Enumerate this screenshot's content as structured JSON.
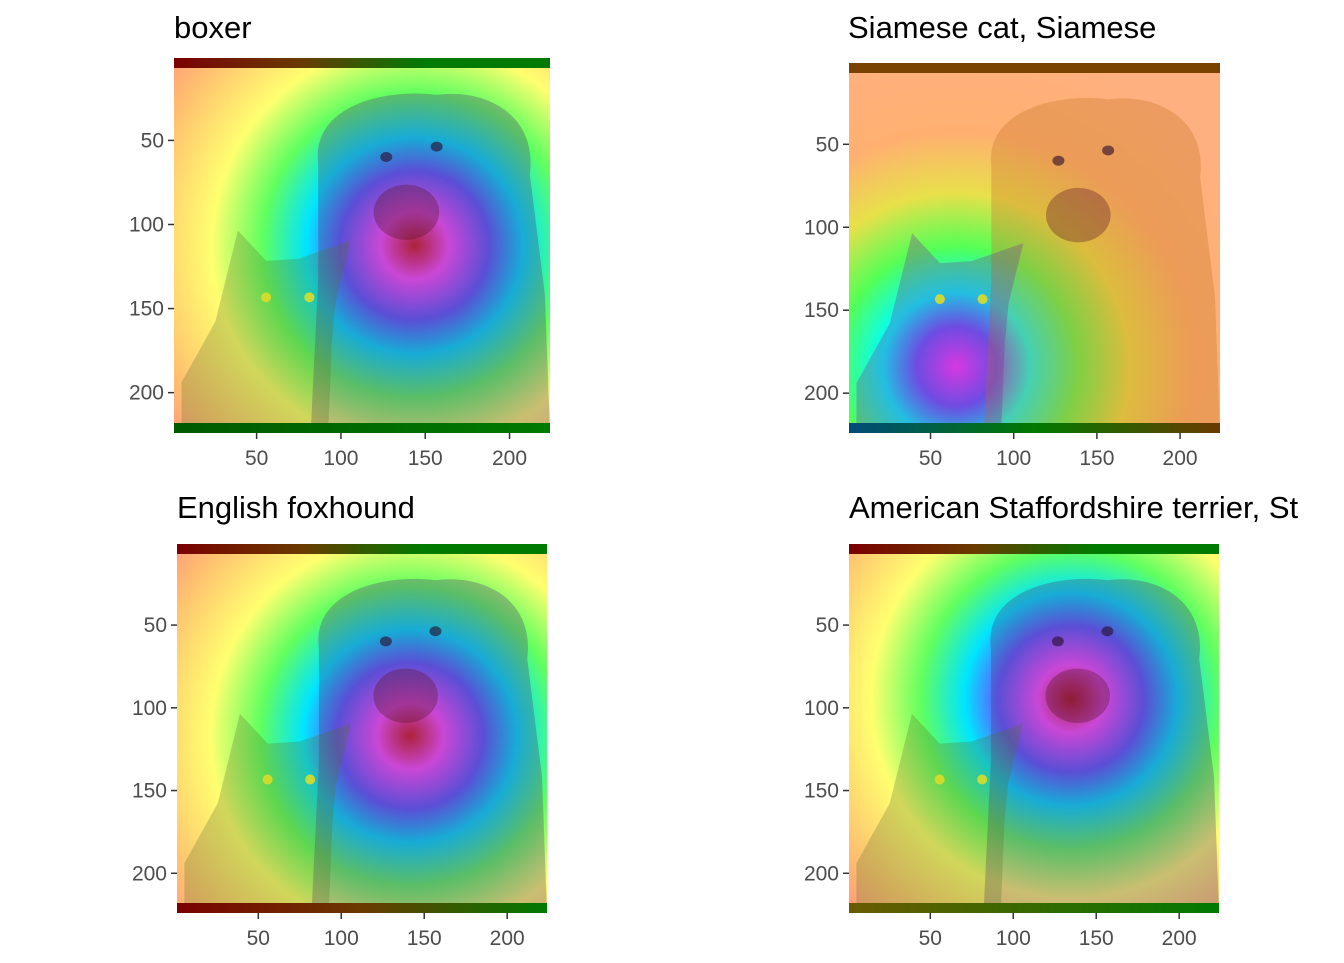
{
  "chart_data": [
    {
      "type": "heatmap",
      "title": "boxer",
      "xlim": [
        1,
        224
      ],
      "ylim": [
        1,
        224
      ],
      "y_reversed": true,
      "x_ticks": [
        50,
        100,
        150,
        200
      ],
      "y_ticks": [
        50,
        100,
        150,
        200
      ],
      "image": "two dogs/puppy and cat photo with class activation heatmap overlay",
      "activation": {
        "hot": "dog face and chest",
        "cold": "cat and left edge"
      }
    },
    {
      "type": "heatmap",
      "title": "Siamese cat, Siamese",
      "xlim": [
        1,
        224
      ],
      "ylim": [
        1,
        224
      ],
      "y_reversed": true,
      "x_ticks": [
        50,
        100,
        150,
        200
      ],
      "y_ticks": [
        50,
        100,
        150,
        200
      ],
      "image": "two dogs/puppy and cat photo with class activation heatmap overlay",
      "activation": {
        "hot": "cat face",
        "cold": "dog and background"
      }
    },
    {
      "type": "heatmap",
      "title": "English foxhound",
      "xlim": [
        1,
        224
      ],
      "ylim": [
        1,
        224
      ],
      "y_reversed": true,
      "x_ticks": [
        50,
        100,
        150,
        200
      ],
      "y_ticks": [
        50,
        100,
        150,
        200
      ],
      "image": "two dogs/puppy and cat photo with class activation heatmap overlay",
      "activation": {
        "hot": "dog face and chest",
        "cold": "cat and left edge"
      }
    },
    {
      "type": "heatmap",
      "title": "American Staffordshire terrier, St",
      "xlim": [
        1,
        224
      ],
      "ylim": [
        1,
        224
      ],
      "y_reversed": true,
      "x_ticks": [
        50,
        100,
        150,
        200
      ],
      "y_ticks": [
        50,
        100,
        150,
        200
      ],
      "image": "two dogs/puppy and cat photo with class activation heatmap overlay",
      "activation": {
        "hot": "dog face",
        "cold": "cat and left edge"
      }
    }
  ],
  "colors": {
    "tick_label": "#4d4d4d",
    "tick_mark": "#333333",
    "title": "#000000"
  }
}
